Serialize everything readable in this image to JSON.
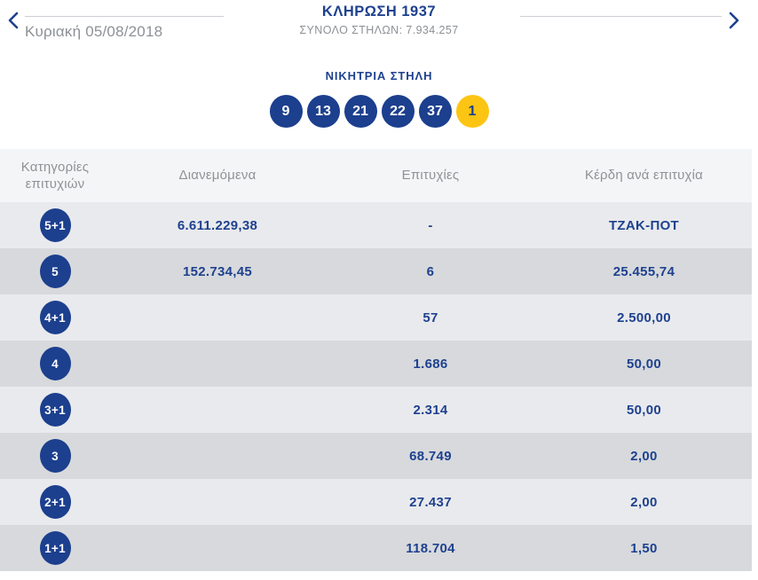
{
  "header": {
    "date": "Κυριακή 05/08/2018",
    "title": "ΚΛΗΡΩΣΗ 1937",
    "total_columns": "ΣΥΝΟΛΟ ΣΤΗΛΩΝ: 7.934.257"
  },
  "winning_column": {
    "title": "ΝΙΚΗΤΡΙΑ ΣΤΗΛΗ",
    "numbers": [
      "9",
      "13",
      "21",
      "22",
      "37"
    ],
    "bonus_number": "1"
  },
  "table": {
    "headers": {
      "category": "Κατηγορίες επιτυχιών",
      "distributed": "Διανεμόμενα",
      "wins": "Επιτυχίες",
      "prize": "Κέρδη ανά επιτυχία"
    },
    "rows": [
      {
        "category": "5+1",
        "distributed": "6.611.229,38",
        "wins": "-",
        "prize": "ΤΖΑΚ-ΠΟΤ"
      },
      {
        "category": "5",
        "distributed": "152.734,45",
        "wins": "6",
        "prize": "25.455,74"
      },
      {
        "category": "4+1",
        "distributed": "",
        "wins": "57",
        "prize": "2.500,00"
      },
      {
        "category": "4",
        "distributed": "",
        "wins": "1.686",
        "prize": "50,00"
      },
      {
        "category": "3+1",
        "distributed": "",
        "wins": "2.314",
        "prize": "50,00"
      },
      {
        "category": "3",
        "distributed": "",
        "wins": "68.749",
        "prize": "2,00"
      },
      {
        "category": "2+1",
        "distributed": "",
        "wins": "27.437",
        "prize": "2,00"
      },
      {
        "category": "1+1",
        "distributed": "",
        "wins": "118.704",
        "prize": "1,50"
      }
    ]
  },
  "colors": {
    "brand_blue": "#1e418f",
    "ball_blue": "#1c3f8e",
    "bonus_yellow": "#fdc513",
    "text_gray": "#8d9196",
    "row_light": "#e9eaed",
    "row_dark": "#d7d9dc",
    "header_band": "#f4f5f6"
  }
}
